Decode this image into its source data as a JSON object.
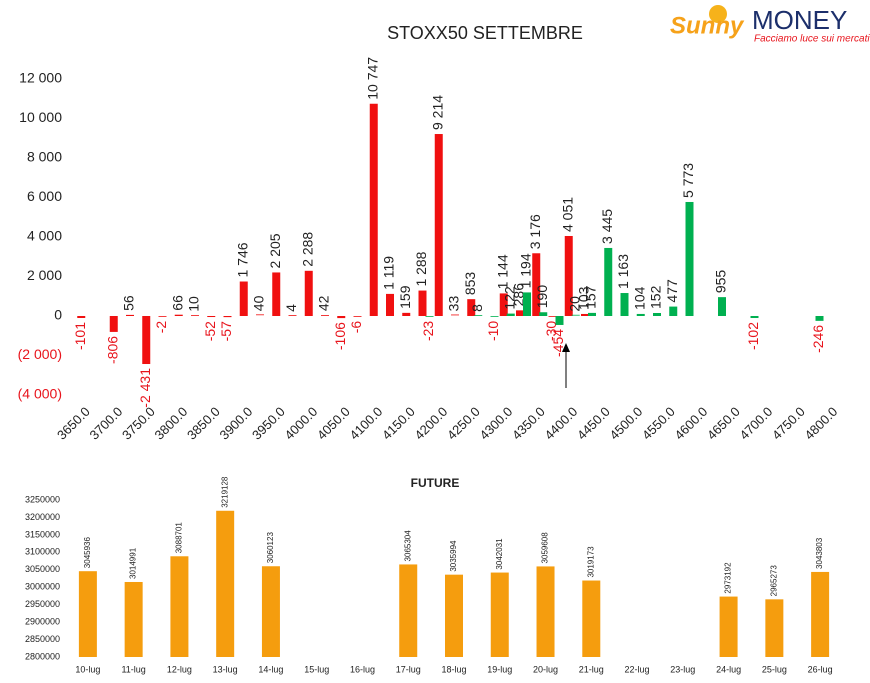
{
  "logo": {
    "brand": "Sunny",
    "name": "MONEY",
    "tagline": "Facciamo luce sui mercati"
  },
  "chart_data": [
    {
      "type": "bar",
      "title": "STOXX50 SETTEMBRE",
      "xlim": [
        3625,
        4825
      ],
      "xticks": [
        {
          "value": 3650,
          "label": "3650.0"
        },
        {
          "value": 3700,
          "label": "3700.0"
        },
        {
          "value": 3750,
          "label": "3750.0"
        },
        {
          "value": 3800,
          "label": "3800.0"
        },
        {
          "value": 3850,
          "label": "3850.0"
        },
        {
          "value": 3900,
          "label": "3900.0"
        },
        {
          "value": 3950,
          "label": "3950.0"
        },
        {
          "value": 4000,
          "label": "4000.0"
        },
        {
          "value": 4050,
          "label": "4050.0"
        },
        {
          "value": 4100,
          "label": "4100.0"
        },
        {
          "value": 4150,
          "label": "4150.0"
        },
        {
          "value": 4200,
          "label": "4200.0"
        },
        {
          "value": 4250,
          "label": "4250.0"
        },
        {
          "value": 4300,
          "label": "4300.0"
        },
        {
          "value": 4350,
          "label": "4350.0"
        },
        {
          "value": 4400,
          "label": "4400.0"
        },
        {
          "value": 4450,
          "label": "4450.0"
        },
        {
          "value": 4500,
          "label": "4500.0"
        },
        {
          "value": 4550,
          "label": "4550.0"
        },
        {
          "value": 4600,
          "label": "4600.0"
        },
        {
          "value": 4650,
          "label": "4650.0"
        },
        {
          "value": 4700,
          "label": "4700.0"
        },
        {
          "value": 4750,
          "label": "4750.0"
        },
        {
          "value": 4800,
          "label": "4800.0"
        }
      ],
      "ylim": [
        -4000,
        12000
      ],
      "yticks": [
        {
          "value": -4000,
          "label": "(4 000)"
        },
        {
          "value": -2000,
          "label": "(2 000)"
        },
        0,
        {
          "value": 2000,
          "label": "2 000"
        },
        {
          "value": 4000,
          "label": "4 000"
        },
        {
          "value": 6000,
          "label": "6 000"
        },
        {
          "value": 8000,
          "label": "8 000"
        },
        {
          "value": 10000,
          "label": "10 000"
        },
        {
          "value": 12000,
          "label": "12 000"
        }
      ],
      "negative_label_color": "#e8141c",
      "series": [
        {
          "color": "#f01010",
          "x": [
            3650,
            3700,
            3725,
            3750,
            3775,
            3800,
            3825,
            3850,
            3875,
            3900,
            3925,
            3950,
            3975,
            4000,
            4025,
            4050,
            4075,
            4100,
            4125,
            4150,
            4175,
            4200,
            4225,
            4250,
            4300,
            4325,
            4350,
            4375,
            4400,
            4425
          ],
          "values": [
            -101,
            -806,
            56,
            -2431,
            -2,
            66,
            10,
            -52,
            -57,
            1746,
            40,
            2205,
            4,
            2288,
            42,
            -106,
            -6,
            10747,
            1119,
            159,
            1288,
            9214,
            33,
            853,
            1144,
            286,
            3176,
            -30,
            4051,
            103
          ],
          "value_labels": [
            "-101",
            "-806",
            "56",
            "-2 431",
            "-2",
            "66",
            "10",
            "-52",
            "-57",
            "1 746",
            "40",
            "2 205",
            "4",
            "2 288",
            "42",
            "-106",
            "-6",
            "10 747",
            "1 119",
            "159",
            "1 288",
            "9 214",
            "33",
            "853",
            "1 144",
            "286",
            "3 176",
            "-30",
            "4 051",
            "103"
          ]
        },
        {
          "color": "#00b050",
          "x": [
            4175,
            4250,
            4275,
            4300,
            4325,
            4350,
            4375,
            4400,
            4425,
            4450,
            4475,
            4500,
            4525,
            4550,
            4575,
            4625,
            4675,
            4775
          ],
          "values": [
            -23,
            8,
            -10,
            122,
            1194,
            190,
            -454,
            20,
            157,
            3445,
            1163,
            104,
            152,
            477,
            5773,
            955,
            -102,
            -246
          ],
          "value_labels": [
            "-23",
            "8",
            "-10",
            "122",
            "1 194",
            "190",
            "-454",
            "20",
            "157",
            "3 445",
            "1 163",
            "104",
            "152",
            "477",
            "5 773",
            "955",
            "-102",
            "-246"
          ]
        }
      ]
    },
    {
      "type": "bar",
      "title": "FUTURE",
      "color": "#f59d0e",
      "categories": [
        "10-lug",
        "11-lug",
        "12-lug",
        "13-lug",
        "14-lug",
        "15-lug",
        "16-lug",
        "17-lug",
        "18-lug",
        "19-lug",
        "20-lug",
        "21-lug",
        "22-lug",
        "23-lug",
        "24-lug",
        "25-lug",
        "26-lug"
      ],
      "values": [
        3045936,
        3014991,
        3088701,
        3219128,
        3060123,
        null,
        null,
        3065304,
        3035994,
        3042031,
        3059608,
        3019173,
        null,
        null,
        2973192,
        2965273,
        3043803
      ],
      "ylim": [
        2800000,
        3250000
      ],
      "yticks": [
        2800000,
        2850000,
        2900000,
        2950000,
        3000000,
        3050000,
        3100000,
        3150000,
        3200000,
        3250000
      ]
    }
  ]
}
